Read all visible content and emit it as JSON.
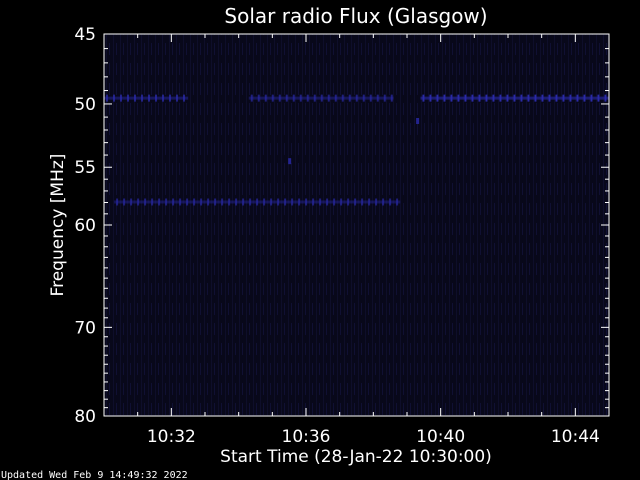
{
  "chart_data": {
    "type": "heatmap",
    "title": "Solar radio Flux (Glasgow)",
    "xlabel": "Start Time (28-Jan-22 10:30:00)",
    "ylabel": "Frequency [MHz]",
    "x_range_minutes": [
      0,
      15
    ],
    "x_ticks": [
      {
        "label": "10:32",
        "minute": 2
      },
      {
        "label": "10:36",
        "minute": 6
      },
      {
        "label": "10:40",
        "minute": 10
      },
      {
        "label": "10:44",
        "minute": 14
      }
    ],
    "y_scale": "log",
    "ylim": [
      45,
      80
    ],
    "y_ticks": [
      45,
      50,
      55,
      60,
      70,
      80
    ],
    "colors": {
      "background": "#000000",
      "plot_fill": "#0a0a1e",
      "emission": "#2a2aa8",
      "text": "#ffffff"
    },
    "features": [
      {
        "kind": "band",
        "freq_mhz": 49.6,
        "minute_start": 0,
        "minute_end": 2.5,
        "intensity": 0.6
      },
      {
        "kind": "band",
        "freq_mhz": 49.6,
        "minute_start": 4.3,
        "minute_end": 8.6,
        "intensity": 0.5
      },
      {
        "kind": "band",
        "freq_mhz": 49.6,
        "minute_start": 9.4,
        "minute_end": 15,
        "intensity": 1.0
      },
      {
        "kind": "band",
        "freq_mhz": 58.0,
        "minute_start": 0.3,
        "minute_end": 8.8,
        "intensity": 0.45
      },
      {
        "kind": "spot",
        "freq_mhz": 54.5,
        "minute": 5.5,
        "intensity": 0.7
      },
      {
        "kind": "spot",
        "freq_mhz": 51.3,
        "minute": 9.3,
        "intensity": 0.7
      }
    ]
  },
  "footer": {
    "updated": "Updated Wed Feb  9 14:49:32 2022"
  }
}
